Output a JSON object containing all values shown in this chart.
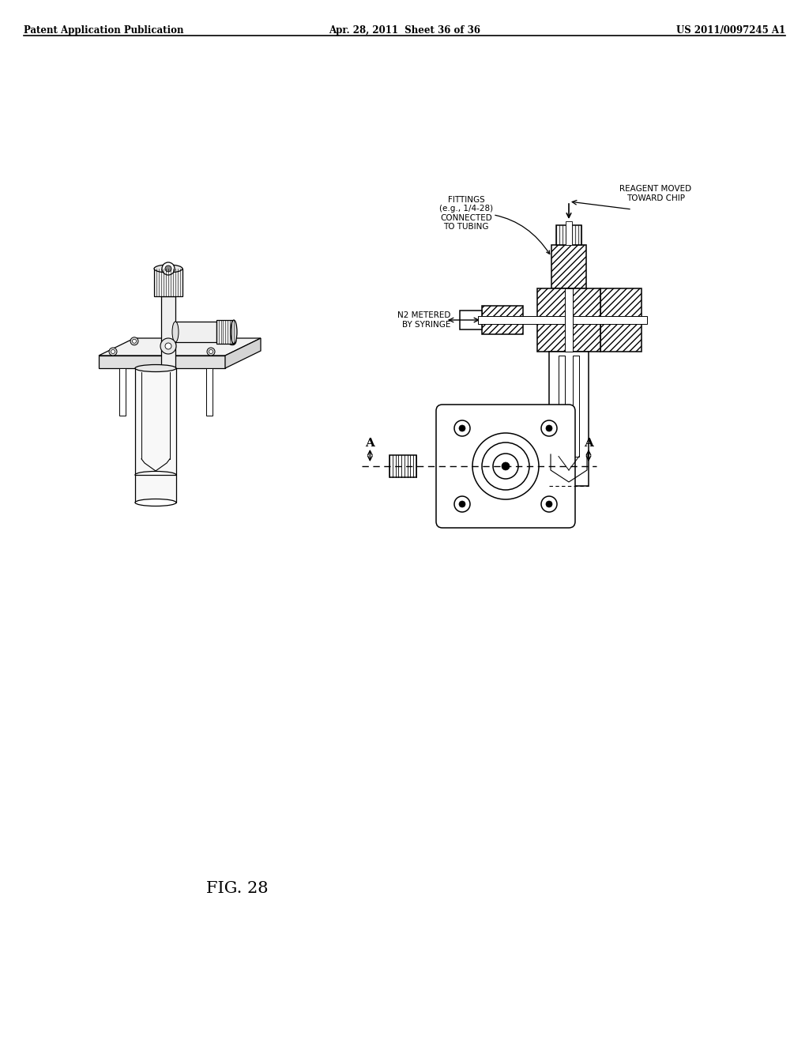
{
  "background_color": "#ffffff",
  "header_left": "Patent Application Publication",
  "header_center": "Apr. 28, 2011  Sheet 36 of 36",
  "header_right": "US 2011/0097245 A1",
  "figure_label": "FIG. 28",
  "ann_fittings": "FITTINGS\n(e.g., 1/4-28)\nCONNECTED\nTO TUBING",
  "ann_reagent": "REAGENT MOVED\nTOWARD CHIP",
  "ann_n2": "N2 METERED\nBY SYRINGE"
}
